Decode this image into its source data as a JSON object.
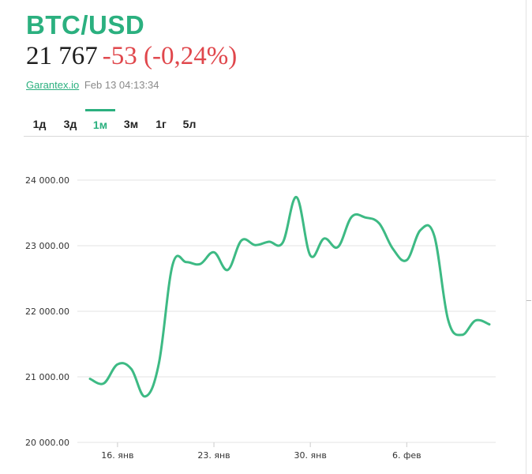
{
  "header": {
    "title": "BTC/USD",
    "price": "21 767",
    "change": "-53 (-0,24%)",
    "source": "Garantex.io",
    "timestamp": "Feb 13 04:13:34"
  },
  "tabs": [
    {
      "label": "1д",
      "active": false
    },
    {
      "label": "3д",
      "active": false
    },
    {
      "label": "1м",
      "active": true
    },
    {
      "label": "3м",
      "active": false
    },
    {
      "label": "1г",
      "active": false
    },
    {
      "label": "5л",
      "active": false
    }
  ],
  "colors": {
    "accent": "#2bb07f",
    "negative": "#e0474c",
    "line": "#3dba84"
  },
  "chart_data": {
    "type": "line",
    "title": "",
    "xlabel": "",
    "ylabel": "",
    "ylim": [
      20000,
      24500
    ],
    "xlim": [
      "2023-01-14",
      "2023-02-12"
    ],
    "yticks": [
      20000,
      21000,
      22000,
      23000,
      24000
    ],
    "ytick_labels": [
      "20 000.00",
      "21 000.00",
      "22 000.00",
      "23 000.00",
      "24 000.00"
    ],
    "xticks": [
      "2023-01-16",
      "2023-01-23",
      "2023-01-30",
      "2023-02-06"
    ],
    "xtick_labels": [
      "16. янв",
      "23. янв",
      "30. янв",
      "6. фев"
    ],
    "grid": true,
    "legend": "none",
    "series": [
      {
        "x": [
          "2023-01-14",
          "2023-01-15",
          "2023-01-16",
          "2023-01-17",
          "2023-01-18",
          "2023-01-19",
          "2023-01-20",
          "2023-01-21",
          "2023-01-22",
          "2023-01-23",
          "2023-01-24",
          "2023-01-25",
          "2023-01-26",
          "2023-01-27",
          "2023-01-28",
          "2023-01-29",
          "2023-01-30",
          "2023-01-31",
          "2023-02-01",
          "2023-02-02",
          "2023-02-03",
          "2023-02-04",
          "2023-02-05",
          "2023-02-06",
          "2023-02-07",
          "2023-02-08",
          "2023-02-09",
          "2023-02-10",
          "2023-02-11",
          "2023-02-12"
        ],
        "values": [
          20970,
          20900,
          21190,
          21120,
          20700,
          21200,
          22710,
          22750,
          22720,
          22900,
          22630,
          23080,
          23010,
          23060,
          23050,
          23740,
          22850,
          23110,
          22980,
          23440,
          23430,
          23340,
          22950,
          22780,
          23240,
          23150,
          21870,
          21640,
          21860,
          21800
        ]
      }
    ]
  }
}
